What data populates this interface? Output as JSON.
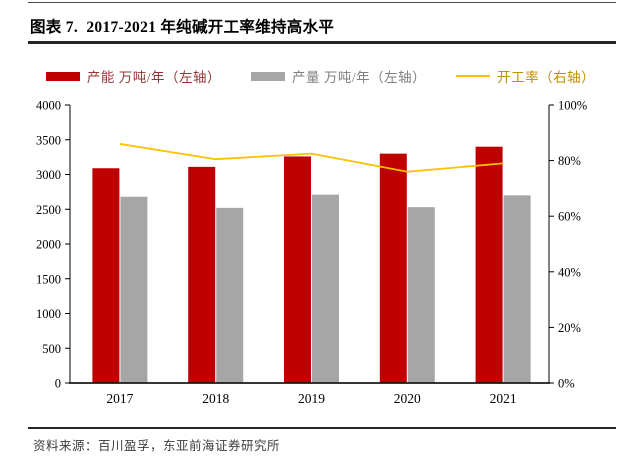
{
  "header": {
    "title": "图表 7.  2017-2021 年纯碱开工率维持高水平"
  },
  "legend": {
    "items": [
      {
        "label": "产能 万吨/年（左轴）",
        "marker": "bar",
        "color": "#C00000",
        "label_color": "#943634"
      },
      {
        "label": "产量 万吨/年（左轴）",
        "marker": "bar",
        "color": "#A6A6A6",
        "label_color": "#7F7F7F"
      },
      {
        "label": "开工率（右轴）",
        "marker": "line",
        "color": "#FFC000",
        "label_color": "#BF8F00"
      }
    ]
  },
  "chart_data": {
    "type": "bar+line combo",
    "categories": [
      "2017",
      "2018",
      "2019",
      "2020",
      "2021"
    ],
    "series": [
      {
        "name": "产能 万吨/年",
        "type": "bar",
        "axis": "left",
        "color": "#C00000",
        "values": [
          3090,
          3110,
          3260,
          3300,
          3400
        ]
      },
      {
        "name": "产量 万吨/年",
        "type": "bar",
        "axis": "left",
        "color": "#A6A6A6",
        "values": [
          2680,
          2520,
          2710,
          2530,
          2700
        ]
      },
      {
        "name": "开工率",
        "type": "line",
        "axis": "right",
        "color": "#FFC000",
        "values": [
          86,
          80.5,
          82.5,
          76,
          79
        ]
      }
    ],
    "left_axis": {
      "min": 0,
      "max": 4000,
      "step": 500,
      "ticks": [
        "0",
        "500",
        "1000",
        "1500",
        "2000",
        "2500",
        "3000",
        "3500",
        "4000"
      ]
    },
    "right_axis": {
      "min": 0,
      "max": 100,
      "step": 20,
      "ticks": [
        "0%",
        "20%",
        "40%",
        "60%",
        "80%",
        "100%"
      ]
    },
    "grid": false,
    "legend_position": "top",
    "title": "2017-2021 年纯碱开工率维持高水平"
  },
  "footer": {
    "source": "资料来源：百川盈孚，东亚前海证券研究所"
  }
}
